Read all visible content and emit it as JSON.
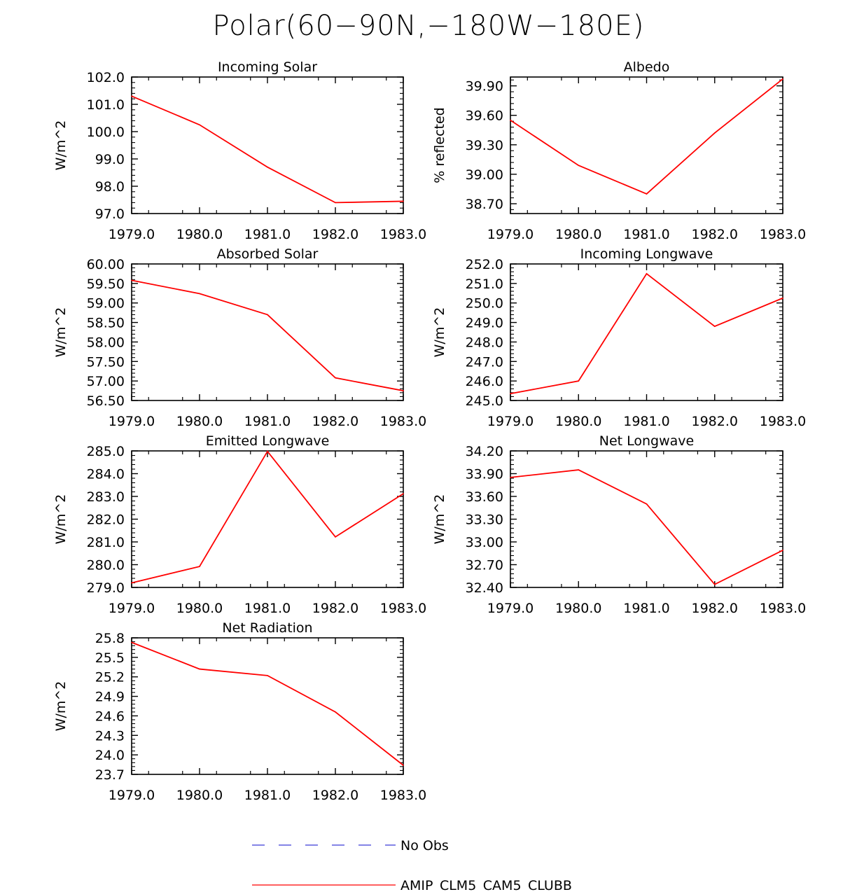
{
  "title": "Polar(60−90N,−180W−180E)",
  "colors": {
    "model": "#ff0000",
    "obs": "#3b3bd6",
    "axis": "#000000"
  },
  "legend": {
    "obs_label": "No Obs",
    "model_label": "AMIP_CLM5_CAM5_CLUBB"
  },
  "chart_data": [
    {
      "type": "line",
      "title": "Incoming Solar",
      "ylabel": "W/m^2",
      "x": [
        1979,
        1980,
        1981,
        1982,
        1983
      ],
      "xlim": [
        1979,
        1983
      ],
      "xticks": [
        "1979.0",
        "1980.0",
        "1981.0",
        "1982.0",
        "1983.0"
      ],
      "ylim": [
        97.0,
        102.0
      ],
      "yticks": [
        "97.0",
        "98.0",
        "99.0",
        "100.0",
        "101.0",
        "102.0"
      ],
      "series": [
        {
          "name": "AMIP_CLM5_CAM5_CLUBB",
          "values": [
            101.3,
            100.25,
            98.7,
            97.4,
            97.45
          ]
        }
      ]
    },
    {
      "type": "line",
      "title": "Albedo",
      "ylabel": "% reflected",
      "x": [
        1979,
        1980,
        1981,
        1982,
        1983
      ],
      "xlim": [
        1979,
        1983
      ],
      "xticks": [
        "1979.0",
        "1980.0",
        "1981.0",
        "1982.0",
        "1983.0"
      ],
      "ylim": [
        38.6,
        39.99
      ],
      "yticks": [
        "38.70",
        "39.00",
        "39.30",
        "39.60",
        "39.90"
      ],
      "series": [
        {
          "name": "AMIP_CLM5_CAM5_CLUBB",
          "values": [
            39.55,
            39.09,
            38.8,
            39.42,
            39.97
          ]
        }
      ]
    },
    {
      "type": "line",
      "title": "Absorbed Solar",
      "ylabel": "W/m^2",
      "x": [
        1979,
        1980,
        1981,
        1982,
        1983
      ],
      "xlim": [
        1979,
        1983
      ],
      "xticks": [
        "1979.0",
        "1980.0",
        "1981.0",
        "1982.0",
        "1983.0"
      ],
      "ylim": [
        56.5,
        60.0
      ],
      "yticks": [
        "56.50",
        "57.00",
        "57.50",
        "58.00",
        "58.50",
        "59.00",
        "59.50",
        "60.00"
      ],
      "series": [
        {
          "name": "AMIP_CLM5_CAM5_CLUBB",
          "values": [
            59.58,
            59.24,
            58.7,
            57.08,
            56.75
          ]
        }
      ]
    },
    {
      "type": "line",
      "title": "Incoming Longwave",
      "ylabel": "W/m^2",
      "x": [
        1979,
        1980,
        1981,
        1982,
        1983
      ],
      "xlim": [
        1979,
        1983
      ],
      "xticks": [
        "1979.0",
        "1980.0",
        "1981.0",
        "1982.0",
        "1983.0"
      ],
      "ylim": [
        245.0,
        252.0
      ],
      "yticks": [
        "245.0",
        "246.0",
        "247.0",
        "248.0",
        "249.0",
        "250.0",
        "251.0",
        "252.0"
      ],
      "series": [
        {
          "name": "AMIP_CLM5_CAM5_CLUBB",
          "values": [
            245.35,
            246.0,
            251.5,
            248.8,
            250.25
          ]
        }
      ]
    },
    {
      "type": "line",
      "title": "Emitted Longwave",
      "ylabel": "W/m^2",
      "x": [
        1979,
        1980,
        1981,
        1982,
        1983
      ],
      "xlim": [
        1979,
        1983
      ],
      "xticks": [
        "1979.0",
        "1980.0",
        "1981.0",
        "1982.0",
        "1983.0"
      ],
      "ylim": [
        279.0,
        285.0
      ],
      "yticks": [
        "279.0",
        "280.0",
        "281.0",
        "282.0",
        "283.0",
        "284.0",
        "285.0"
      ],
      "series": [
        {
          "name": "AMIP_CLM5_CAM5_CLUBB",
          "values": [
            279.2,
            279.92,
            284.98,
            281.22,
            283.12
          ]
        }
      ]
    },
    {
      "type": "line",
      "title": "Net Longwave",
      "ylabel": "W/m^2",
      "x": [
        1979,
        1980,
        1981,
        1982,
        1983
      ],
      "xlim": [
        1979,
        1983
      ],
      "xticks": [
        "1979.0",
        "1980.0",
        "1981.0",
        "1982.0",
        "1983.0"
      ],
      "ylim": [
        32.4,
        34.2
      ],
      "yticks": [
        "32.40",
        "32.70",
        "33.00",
        "33.30",
        "33.60",
        "33.90",
        "34.20"
      ],
      "series": [
        {
          "name": "AMIP_CLM5_CAM5_CLUBB",
          "values": [
            33.85,
            33.95,
            33.5,
            32.44,
            32.89
          ]
        }
      ]
    },
    {
      "type": "line",
      "title": "Net Radiation",
      "ylabel": "W/m^2",
      "x": [
        1979,
        1980,
        1981,
        1982,
        1983
      ],
      "xlim": [
        1979,
        1983
      ],
      "xticks": [
        "1979.0",
        "1980.0",
        "1981.0",
        "1982.0",
        "1983.0"
      ],
      "ylim": [
        23.7,
        25.8
      ],
      "yticks": [
        "23.7",
        "24.0",
        "24.3",
        "24.6",
        "24.9",
        "25.2",
        "25.5",
        "25.8"
      ],
      "series": [
        {
          "name": "AMIP_CLM5_CAM5_CLUBB",
          "values": [
            25.73,
            25.32,
            25.22,
            24.66,
            23.84
          ]
        }
      ]
    }
  ]
}
